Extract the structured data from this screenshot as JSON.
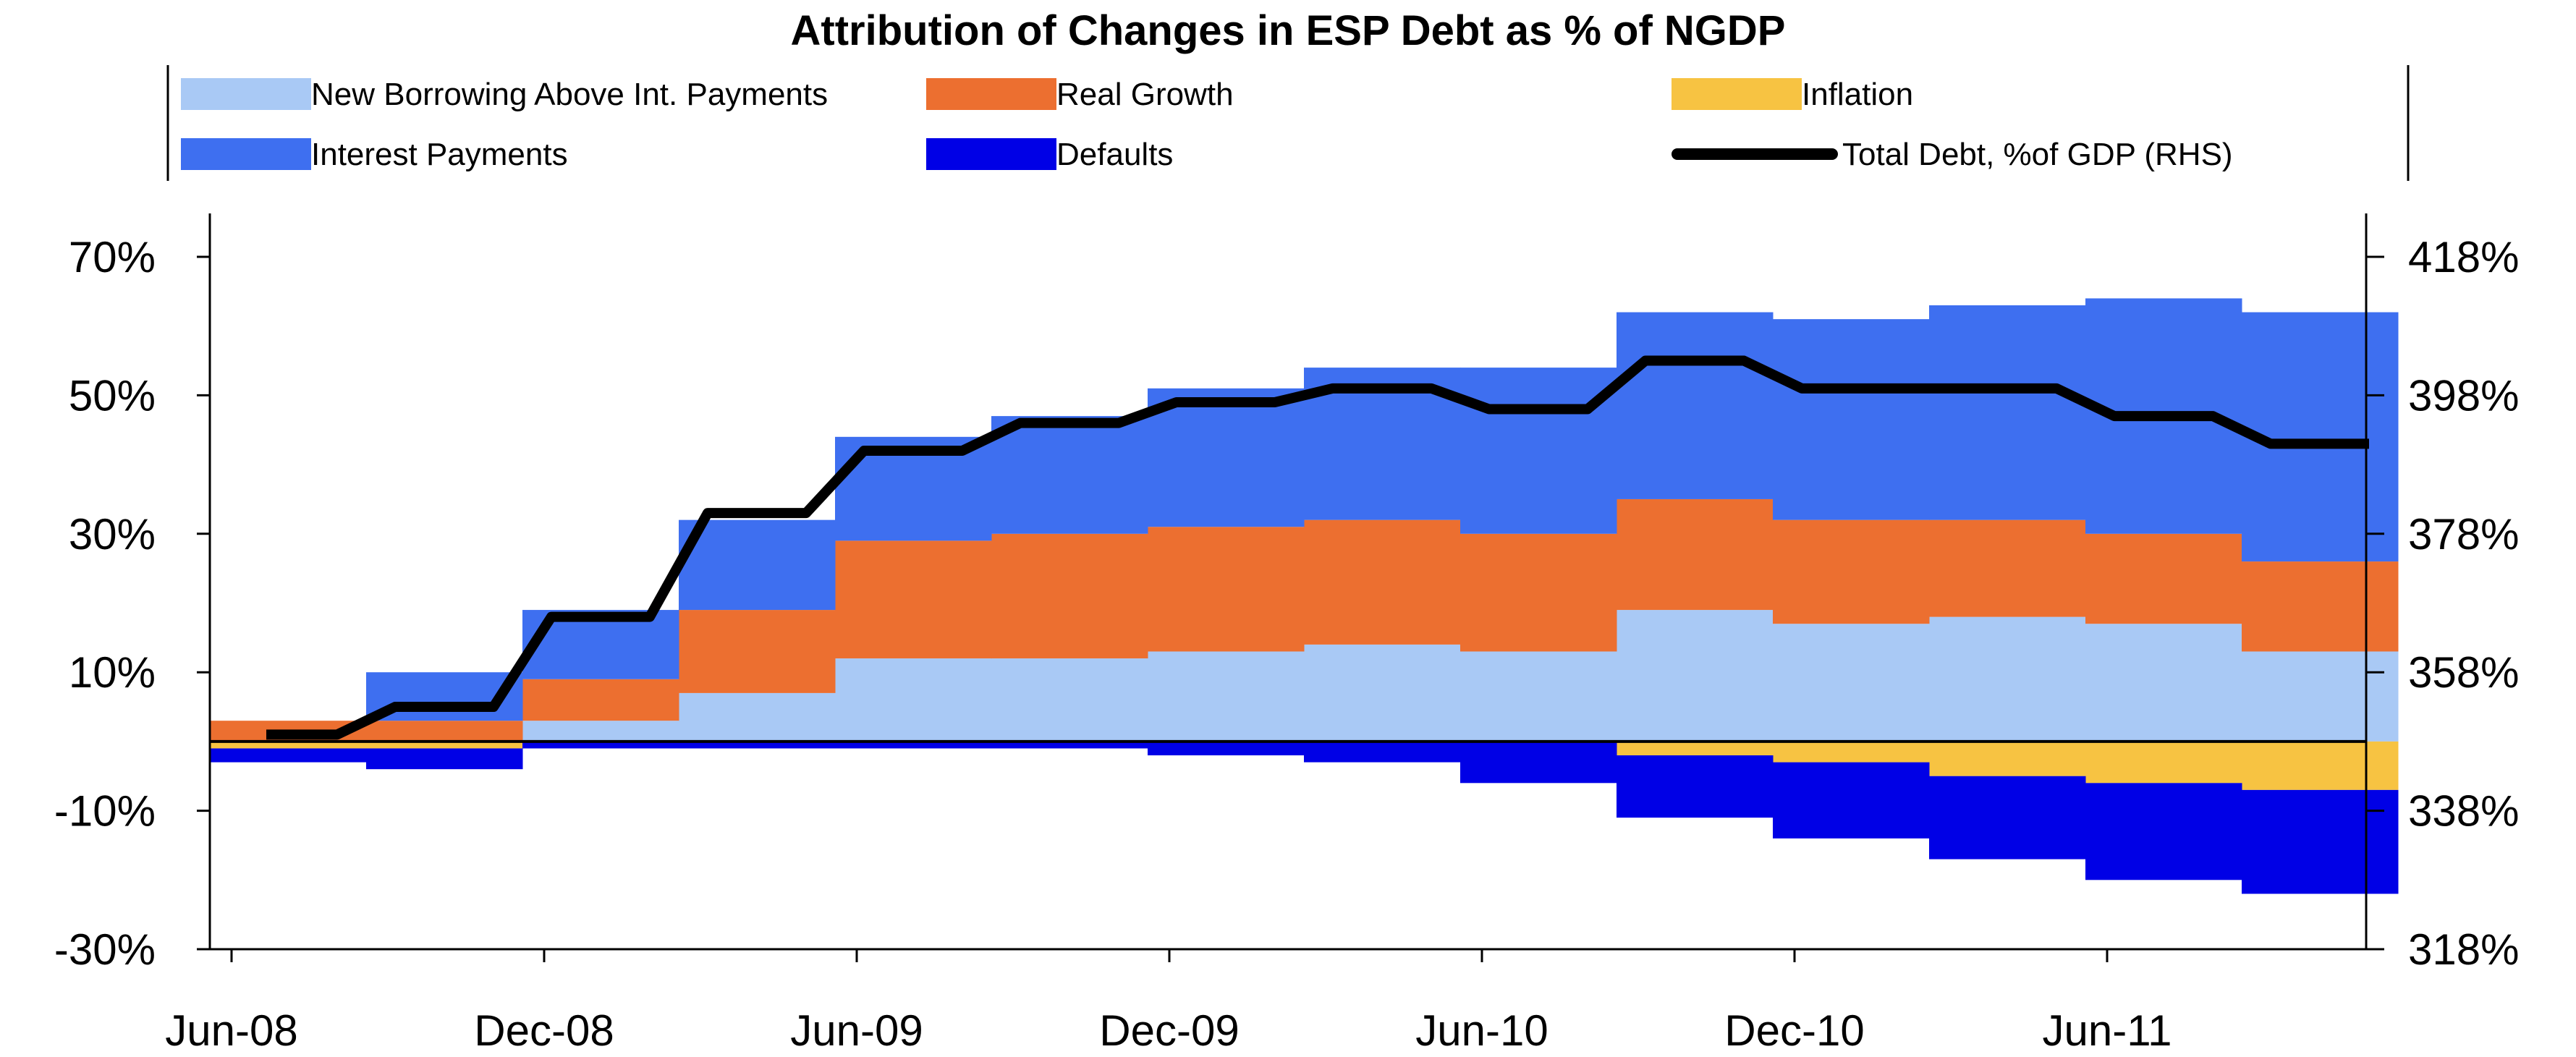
{
  "chart_data": {
    "type": "area",
    "title": "Attribution of Changes in ESP Debt as % of NGDP",
    "x_tick_labels": [
      "Jun-08",
      "Dec-08",
      "Jun-09",
      "Dec-09",
      "Jun-10",
      "Dec-10",
      "Jun-11"
    ],
    "periods": [
      "2008-06",
      "2008-09",
      "2008-12",
      "2009-03",
      "2009-06",
      "2009-09",
      "2009-12",
      "2010-03",
      "2010-06",
      "2010-09",
      "2010-12",
      "2011-03",
      "2011-06",
      "2011-09"
    ],
    "left_axis": {
      "ylim": [
        -30,
        70
      ],
      "ticks": [
        "70%",
        "50%",
        "30%",
        "10%",
        "-10%",
        "-30%"
      ]
    },
    "right_axis": {
      "ylim": [
        318,
        418
      ],
      "ticks": [
        "418%",
        "398%",
        "378%",
        "358%",
        "338%",
        "318%"
      ]
    },
    "series": [
      {
        "name": "New Borrowing Above Int. Payments",
        "color": "#a9c9f5",
        "values": [
          0,
          0,
          3,
          7,
          12,
          12,
          13,
          14,
          13,
          19,
          17,
          18,
          17,
          13
        ]
      },
      {
        "name": "Real Growth",
        "color": "#ec6f30",
        "values": [
          3,
          3,
          6,
          12,
          17,
          18,
          18,
          18,
          17,
          16,
          15,
          14,
          13,
          13
        ]
      },
      {
        "name": "Inflation",
        "color": "#f7c342",
        "values": [
          -1,
          -1,
          0,
          0,
          0,
          0,
          0,
          0,
          0,
          -2,
          -3,
          -5,
          -6,
          -7
        ]
      },
      {
        "name": "Interest Payments",
        "color": "#3e6ff0",
        "values": [
          0,
          7,
          10,
          13,
          15,
          17,
          20,
          22,
          24,
          27,
          29,
          31,
          34,
          36
        ]
      },
      {
        "name": "Defaults",
        "color": "#0000e6",
        "values": [
          -2,
          -3,
          -1,
          -1,
          -1,
          -1,
          -2,
          -3,
          -6,
          -9,
          -11,
          -12,
          -14,
          -15
        ]
      }
    ],
    "line": {
      "name": "Total Debt, %of GDP (RHS)",
      "color": "#000000",
      "values": [
        349,
        353,
        366,
        381,
        390,
        394,
        397,
        399,
        396,
        403,
        399,
        399,
        395,
        391
      ]
    },
    "legend": {
      "placement": "top",
      "rows": [
        [
          "New Borrowing Above Int. Payments",
          "Real Growth",
          "Inflation"
        ],
        [
          "Interest Payments",
          "Defaults",
          "Total Debt, %of GDP (RHS)"
        ]
      ]
    },
    "grid": false
  }
}
